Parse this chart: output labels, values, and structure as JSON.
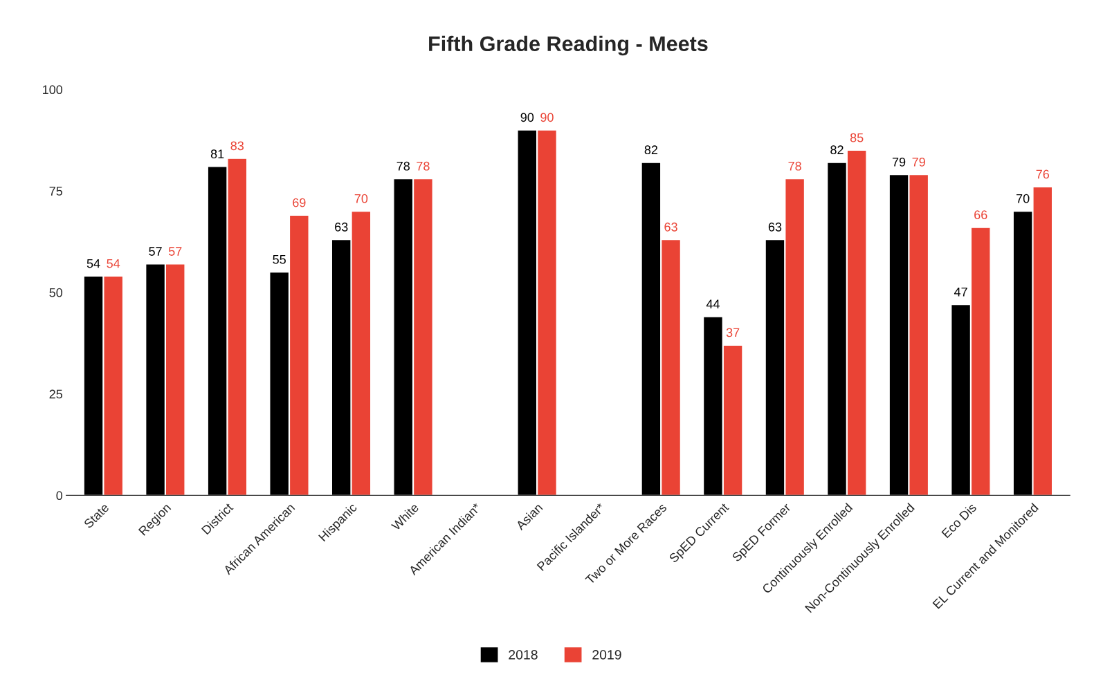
{
  "chart_data": {
    "type": "bar",
    "title": "Fifth Grade Reading - Meets",
    "categories": [
      "State",
      "Region",
      "District",
      "African American",
      "Hispanic",
      "White",
      "American Indian*",
      "Asian",
      "Pacific Islander*",
      "Two or More Races",
      "SpED Current",
      "SpED Former",
      "Continuously Enrolled",
      "Non-Continuously Enrolled",
      "Eco Dis",
      "EL Current and Monitored"
    ],
    "series": [
      {
        "name": "2018",
        "color": "#000000",
        "values": [
          54,
          57,
          81,
          55,
          63,
          78,
          null,
          90,
          null,
          82,
          44,
          63,
          82,
          79,
          47,
          70
        ]
      },
      {
        "name": "2019",
        "color": "#ea4335",
        "values": [
          54,
          57,
          83,
          69,
          70,
          78,
          null,
          90,
          null,
          63,
          37,
          78,
          85,
          79,
          66,
          76
        ]
      }
    ],
    "ylim": [
      0,
      100
    ],
    "yticks": [
      0,
      25,
      50,
      75,
      100
    ],
    "grid": false,
    "legend": "bottom",
    "data_labels": true
  }
}
